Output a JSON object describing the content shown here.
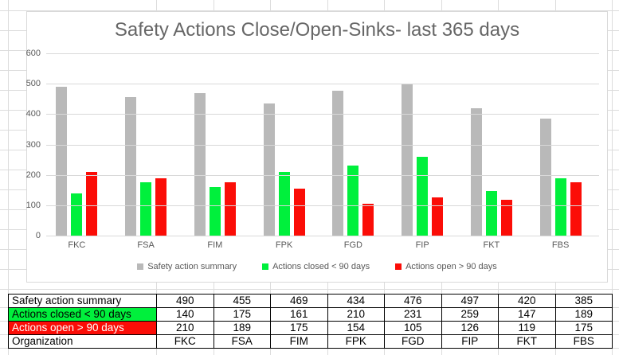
{
  "chart_data": {
    "type": "bar",
    "title": "Safety Actions Close/Open-Sinks- last 365 days",
    "categories": [
      "FKC",
      "FSA",
      "FIM",
      "FPK",
      "FGD",
      "FIP",
      "FKT",
      "FBS"
    ],
    "series": [
      {
        "name": "Safety action summary",
        "color": "#b9b9b9",
        "values": [
          490,
          455,
          469,
          434,
          476,
          497,
          420,
          385
        ]
      },
      {
        "name": "Actions closed < 90 days",
        "color": "#00f03c",
        "values": [
          140,
          175,
          161,
          210,
          231,
          259,
          147,
          189
        ]
      },
      {
        "name": "Actions open > 90 days",
        "color": "#fb0d07",
        "values": [
          210,
          189,
          175,
          154,
          105,
          126,
          119,
          175
        ]
      }
    ],
    "xlabel": "",
    "ylabel": "",
    "ylim": [
      0,
      600
    ],
    "yticks": [
      "600",
      "500",
      "400",
      "300",
      "200",
      "100",
      "0"
    ],
    "grid": "horizontal",
    "legend_position": "bottom"
  },
  "table": {
    "rows": [
      {
        "label": "Safety action summary",
        "bg": "#ffffff",
        "fg": "#000000",
        "values": [
          "490",
          "455",
          "469",
          "434",
          "476",
          "497",
          "420",
          "385"
        ]
      },
      {
        "label": "Actions closed < 90 days",
        "bg": "#00f03c",
        "fg": "#000000",
        "values": [
          "140",
          "175",
          "161",
          "210",
          "231",
          "259",
          "147",
          "189"
        ]
      },
      {
        "label": "Actions open > 90 days",
        "bg": "#fb0d07",
        "fg": "#ffffff",
        "values": [
          "210",
          "189",
          "175",
          "154",
          "105",
          "126",
          "119",
          "175"
        ]
      },
      {
        "label": "Organization",
        "bg": "#ffffff",
        "fg": "#000000",
        "values": [
          "FKC",
          "FSA",
          "FIM",
          "FPK",
          "FGD",
          "FIP",
          "FKT",
          "FBS"
        ]
      }
    ]
  },
  "colors": {
    "series_gray": "#b9b9b9",
    "series_green": "#00f03c",
    "series_red": "#fb0d07",
    "sheet_gridline": "#dcdcdc",
    "chart_gridline": "#d9d9d9",
    "axis_text": "#595959",
    "title_text": "#666666"
  }
}
